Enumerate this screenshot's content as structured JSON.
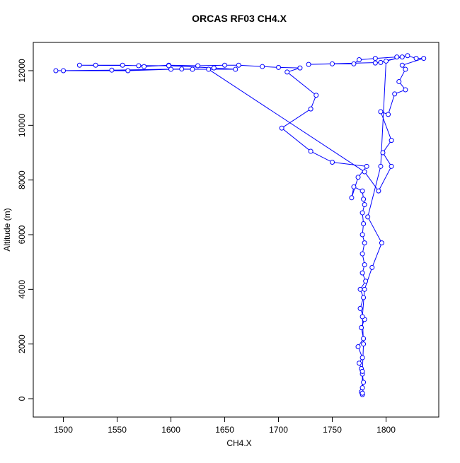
{
  "chart_data": {
    "type": "line",
    "title": "ORCAS RF03 CH4.X",
    "x_label": "CH4.X",
    "y_label": "Altitude (m)",
    "color": "#0000ff",
    "markers": "open-circle",
    "x": [
      1778,
      1777,
      1778,
      1779,
      1778,
      1777,
      1775,
      1778,
      1774,
      1779,
      1777,
      1780,
      1776,
      1779,
      1776,
      1781,
      1778,
      1780,
      1778,
      1780,
      1778,
      1779,
      1778,
      1780,
      1779,
      1778,
      1770,
      1768,
      1774,
      1782,
      1750,
      1730,
      1703,
      1730,
      1735,
      1708,
      1720,
      1700,
      1685,
      1663,
      1650,
      1625,
      1598,
      1575,
      1570,
      1555,
      1530,
      1515,
      1598,
      1640,
      1660,
      1620,
      1600,
      1560,
      1500,
      1493,
      1545,
      1610,
      1635,
      1780,
      1793,
      1805,
      1797,
      1805,
      1795,
      1802,
      1808,
      1818,
      1812,
      1818,
      1815,
      1835,
      1828,
      1820,
      1810,
      1790,
      1775,
      1770,
      1750,
      1728,
      1795,
      1790,
      1815,
      1800,
      1795,
      1783,
      1796,
      1787,
      1780,
      1778,
      1779,
      1778,
      1778
    ],
    "y": [
      150,
      250,
      400,
      600,
      900,
      1100,
      1300,
      1500,
      1900,
      2200,
      2600,
      2900,
      3300,
      3700,
      4000,
      4300,
      4600,
      4900,
      5300,
      5700,
      6000,
      6400,
      6800,
      7100,
      7300,
      7600,
      7750,
      7350,
      8100,
      8500,
      8650,
      9050,
      9900,
      10600,
      11100,
      11950,
      12100,
      12120,
      12150,
      12200,
      12200,
      12180,
      12200,
      12150,
      12180,
      12200,
      12200,
      12200,
      12180,
      12100,
      12050,
      12050,
      12050,
      12000,
      12000,
      12000,
      12020,
      12060,
      12050,
      8300,
      7600,
      8500,
      9000,
      9450,
      10500,
      10400,
      11150,
      11300,
      11600,
      12050,
      12200,
      12450,
      12450,
      12550,
      12500,
      12450,
      12400,
      12250,
      12250,
      12230,
      12300,
      12280,
      12500,
      12350,
      8500,
      6650,
      5700,
      4800,
      4000,
      3000,
      2000,
      1000,
      200
    ],
    "xlim": [
      1472,
      1849
    ],
    "ylim": [
      -672,
      13034
    ],
    "xticks": [
      1500,
      1550,
      1600,
      1650,
      1700,
      1750,
      1800
    ],
    "yticks": [
      0,
      2000,
      4000,
      6000,
      8000,
      10000,
      12000
    ]
  }
}
